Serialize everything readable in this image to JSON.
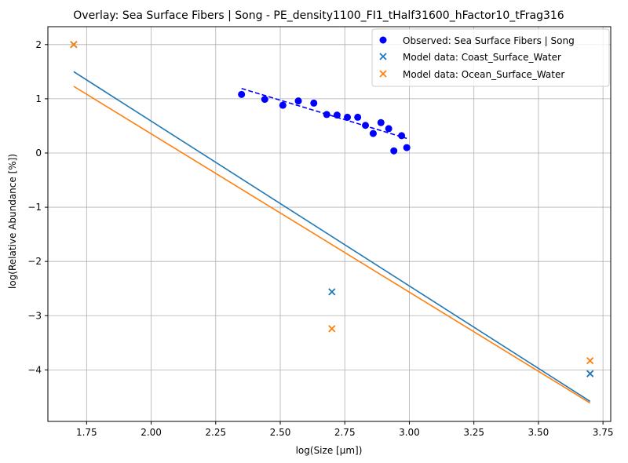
{
  "chart_data": {
    "type": "scatter",
    "title": "Overlay: Sea Surface Fibers | Song - PE_density1100_FI1_tHalf31600_hFactor10_tFrag316",
    "xlabel": "log(Size [μm])",
    "ylabel": "log(Relative Abundance [%])",
    "xlim": [
      1.6,
      3.78
    ],
    "ylim": [
      -4.95,
      2.33
    ],
    "xticks": [
      "1.75",
      "2.00",
      "2.25",
      "2.50",
      "2.75",
      "3.00",
      "3.25",
      "3.50",
      "3.75"
    ],
    "xtick_values": [
      1.75,
      2.0,
      2.25,
      2.5,
      2.75,
      3.0,
      3.25,
      3.5,
      3.75
    ],
    "yticks": [
      "2",
      "1",
      "0",
      "−1",
      "−2",
      "−3",
      "−4"
    ],
    "ytick_values": [
      2,
      1,
      0,
      -1,
      -2,
      -3,
      -4
    ],
    "grid": true,
    "legend_position": "top-right",
    "series": [
      {
        "name": "Observed: Sea Surface Fibers | Song",
        "marker": "circle",
        "color": "#0000ff",
        "points": [
          [
            2.35,
            1.08
          ],
          [
            2.44,
            0.99
          ],
          [
            2.51,
            0.88
          ],
          [
            2.57,
            0.96
          ],
          [
            2.63,
            0.92
          ],
          [
            2.68,
            0.71
          ],
          [
            2.72,
            0.7
          ],
          [
            2.76,
            0.66
          ],
          [
            2.8,
            0.66
          ],
          [
            2.83,
            0.51
          ],
          [
            2.86,
            0.36
          ],
          [
            2.89,
            0.56
          ],
          [
            2.92,
            0.45
          ],
          [
            2.94,
            0.04
          ],
          [
            2.97,
            0.32
          ],
          [
            2.99,
            0.1
          ]
        ]
      },
      {
        "name": "Model data: Coast_Surface_Water",
        "marker": "x",
        "color": "#1f77b4",
        "points": [
          [
            1.7,
            2.0
          ],
          [
            2.7,
            -2.56
          ],
          [
            3.7,
            -4.07
          ]
        ]
      },
      {
        "name": "Model data: Ocean_Surface_Water",
        "marker": "x",
        "color": "#ff7f0e",
        "points": [
          [
            1.7,
            2.0
          ],
          [
            2.7,
            -3.24
          ],
          [
            3.7,
            -3.83
          ]
        ]
      }
    ],
    "fit_lines": [
      {
        "color": "#0000ff",
        "style": "dashed",
        "points": [
          [
            2.35,
            1.19
          ],
          [
            2.99,
            0.27
          ]
        ]
      },
      {
        "color": "#1f77b4",
        "style": "solid",
        "points": [
          [
            1.7,
            1.5
          ],
          [
            3.7,
            -4.58
          ]
        ]
      },
      {
        "color": "#ff7f0e",
        "style": "solid",
        "points": [
          [
            1.7,
            1.23
          ],
          [
            3.7,
            -4.61
          ]
        ]
      }
    ]
  }
}
